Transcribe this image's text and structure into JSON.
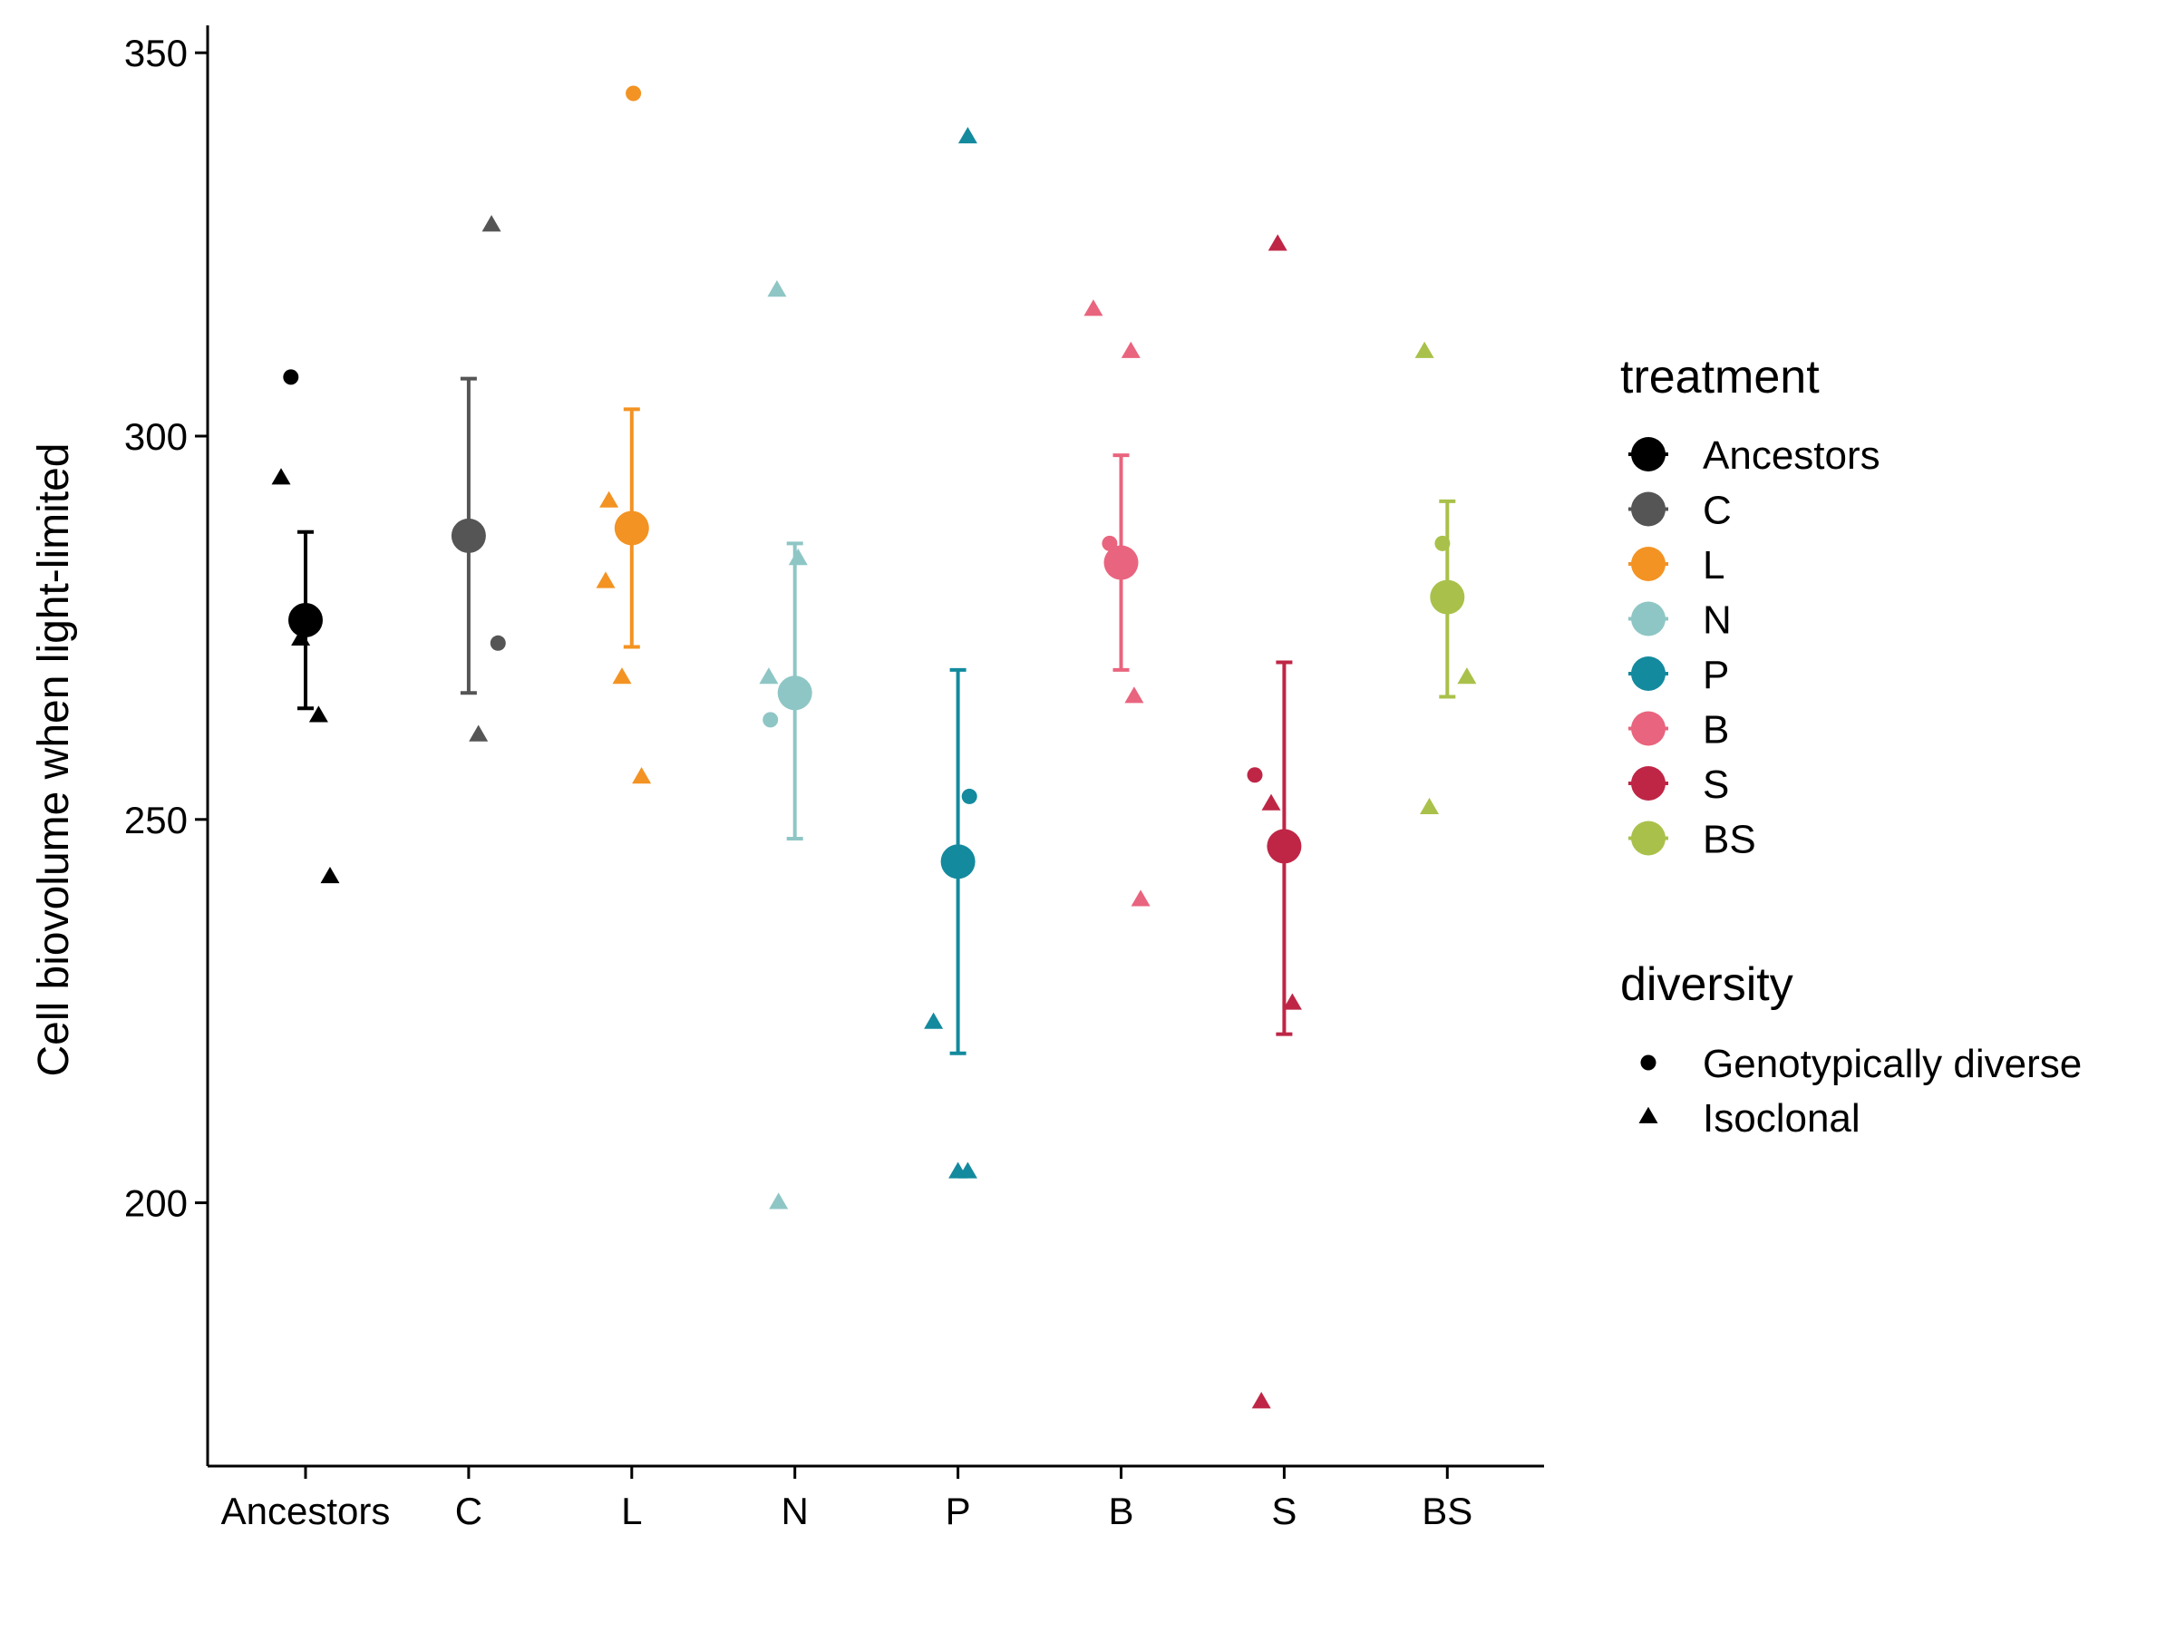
{
  "chart_data": {
    "type": "scatter",
    "title": "",
    "xlabel": "",
    "ylabel": "Cell biovolume when light-limited",
    "ylim": [
      165,
      353
    ],
    "yticks": [
      200,
      250,
      300,
      350
    ],
    "categories": [
      "Ancestors",
      "C",
      "L",
      "N",
      "P",
      "B",
      "S",
      "BS"
    ],
    "grid": false,
    "legend_placement": "right",
    "legends": [
      {
        "title": "treatment",
        "items": [
          {
            "label": "Ancestors",
            "color": "#000000"
          },
          {
            "label": "C",
            "color": "#555555"
          },
          {
            "label": "L",
            "color": "#F39323"
          },
          {
            "label": "N",
            "color": "#8EC6C5"
          },
          {
            "label": "P",
            "color": "#138A9E"
          },
          {
            "label": "B",
            "color": "#E9647E"
          },
          {
            "label": "S",
            "color": "#BF2646"
          },
          {
            "label": "BS",
            "color": "#A9C14A"
          }
        ]
      },
      {
        "title": "diversity",
        "items": [
          {
            "label": "Genotypically diverse",
            "shape": "circle"
          },
          {
            "label": "Isoclonal",
            "shape": "triangle"
          }
        ]
      }
    ],
    "series": [
      {
        "category": "Ancestors",
        "color": "#000000",
        "mean": 276,
        "lower": 264.5,
        "upper": 287.5,
        "points": [
          {
            "dx": -0.09,
            "y": 307.7,
            "diversity": "Genotypically diverse"
          },
          {
            "dx": -0.15,
            "y": 294.5,
            "diversity": "Isoclonal"
          },
          {
            "dx": -0.03,
            "y": 273.5,
            "diversity": "Isoclonal"
          },
          {
            "dx": 0.08,
            "y": 263.5,
            "diversity": "Isoclonal"
          },
          {
            "dx": 0.15,
            "y": 242.5,
            "diversity": "Isoclonal"
          }
        ]
      },
      {
        "category": "C",
        "color": "#555555",
        "mean": 287,
        "lower": 266.5,
        "upper": 307.5,
        "points": [
          {
            "dx": 0.14,
            "y": 327.5,
            "diversity": "Isoclonal"
          },
          {
            "dx": 0.18,
            "y": 273,
            "diversity": "Genotypically diverse"
          },
          {
            "dx": 0.06,
            "y": 261,
            "diversity": "Isoclonal"
          }
        ]
      },
      {
        "category": "L",
        "color": "#F39323",
        "mean": 288,
        "lower": 272.5,
        "upper": 303.5,
        "points": [
          {
            "dx": 0.01,
            "y": 344.7,
            "diversity": "Genotypically diverse"
          },
          {
            "dx": -0.14,
            "y": 291.5,
            "diversity": "Isoclonal"
          },
          {
            "dx": -0.16,
            "y": 281,
            "diversity": "Isoclonal"
          },
          {
            "dx": -0.06,
            "y": 268.5,
            "diversity": "Isoclonal"
          },
          {
            "dx": 0.06,
            "y": 255.5,
            "diversity": "Isoclonal"
          }
        ]
      },
      {
        "category": "N",
        "color": "#8EC6C5",
        "mean": 266.5,
        "lower": 247.5,
        "upper": 286,
        "points": [
          {
            "dx": -0.11,
            "y": 319,
            "diversity": "Isoclonal"
          },
          {
            "dx": 0.02,
            "y": 284,
            "diversity": "Isoclonal"
          },
          {
            "dx": -0.16,
            "y": 268.5,
            "diversity": "Isoclonal"
          },
          {
            "dx": -0.15,
            "y": 263,
            "diversity": "Genotypically diverse"
          },
          {
            "dx": -0.1,
            "y": 200,
            "diversity": "Isoclonal"
          }
        ]
      },
      {
        "category": "P",
        "color": "#138A9E",
        "mean": 244.5,
        "lower": 219.5,
        "upper": 269.5,
        "points": [
          {
            "dx": 0.06,
            "y": 339,
            "diversity": "Isoclonal"
          },
          {
            "dx": 0.07,
            "y": 253,
            "diversity": "Genotypically diverse"
          },
          {
            "dx": -0.15,
            "y": 223.5,
            "diversity": "Isoclonal"
          },
          {
            "dx": 0.0,
            "y": 204,
            "diversity": "Isoclonal"
          },
          {
            "dx": 0.06,
            "y": 204,
            "diversity": "Isoclonal"
          }
        ]
      },
      {
        "category": "B",
        "color": "#E9647E",
        "mean": 283.5,
        "lower": 269.5,
        "upper": 297.5,
        "points": [
          {
            "dx": -0.17,
            "y": 316.5,
            "diversity": "Isoclonal"
          },
          {
            "dx": 0.06,
            "y": 311,
            "diversity": "Isoclonal"
          },
          {
            "dx": -0.07,
            "y": 286,
            "diversity": "Genotypically diverse"
          },
          {
            "dx": 0.08,
            "y": 266,
            "diversity": "Isoclonal"
          },
          {
            "dx": 0.12,
            "y": 239.5,
            "diversity": "Isoclonal"
          }
        ]
      },
      {
        "category": "S",
        "color": "#BF2646",
        "mean": 246.5,
        "lower": 222,
        "upper": 270.5,
        "points": [
          {
            "dx": -0.04,
            "y": 325,
            "diversity": "Isoclonal"
          },
          {
            "dx": -0.18,
            "y": 255.8,
            "diversity": "Genotypically diverse"
          },
          {
            "dx": -0.08,
            "y": 252,
            "diversity": "Isoclonal"
          },
          {
            "dx": 0.05,
            "y": 226,
            "diversity": "Isoclonal"
          },
          {
            "dx": -0.14,
            "y": 174,
            "diversity": "Isoclonal"
          }
        ]
      },
      {
        "category": "BS",
        "color": "#A9C14A",
        "mean": 279,
        "lower": 266,
        "upper": 291.5,
        "points": [
          {
            "dx": -0.14,
            "y": 311,
            "diversity": "Isoclonal"
          },
          {
            "dx": -0.03,
            "y": 286,
            "diversity": "Genotypically diverse"
          },
          {
            "dx": 0.12,
            "y": 268.5,
            "diversity": "Isoclonal"
          },
          {
            "dx": -0.11,
            "y": 251.5,
            "diversity": "Isoclonal"
          }
        ]
      }
    ]
  }
}
